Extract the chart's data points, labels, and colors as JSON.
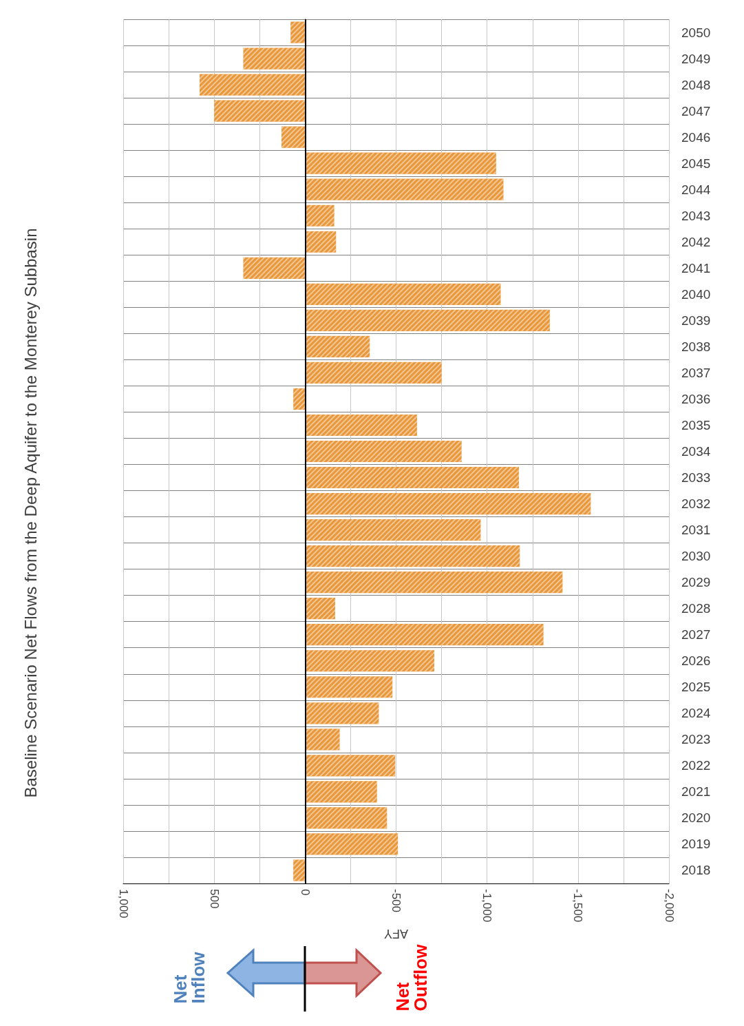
{
  "chart_data": {
    "type": "bar",
    "orientation": "horizontal",
    "title": "Baseline Scenario Net Flows from the Deep Aquifer to the Monterey Subbasin",
    "xlabel": "AFY",
    "categories": [
      "2050",
      "2049",
      "2048",
      "2047",
      "2046",
      "2045",
      "2044",
      "2043",
      "2042",
      "2041",
      "2040",
      "2039",
      "2038",
      "2037",
      "2036",
      "2035",
      "2034",
      "2033",
      "2032",
      "2031",
      "2030",
      "2029",
      "2028",
      "2027",
      "2026",
      "2025",
      "2024",
      "2023",
      "2022",
      "2021",
      "2020",
      "2019",
      "2018"
    ],
    "values": [
      80,
      340,
      580,
      500,
      130,
      -1050,
      -1090,
      -160,
      -170,
      340,
      -1075,
      -1345,
      -355,
      -750,
      65,
      -615,
      -860,
      -1175,
      -1570,
      -965,
      -1180,
      -1415,
      -165,
      -1310,
      -710,
      -480,
      -405,
      -190,
      -495,
      -395,
      -450,
      -510,
      65
    ],
    "color": "#e8973a",
    "xlim": [
      1000,
      -2000
    ],
    "xticks": [
      {
        "value": 1000,
        "label": "1,000"
      },
      {
        "value": 750,
        "label": null
      },
      500,
      {
        "value": 250,
        "label": null
      },
      0,
      {
        "value": -250,
        "label": null
      },
      -500,
      {
        "value": -750,
        "label": null
      },
      {
        "value": -1000,
        "label": "-1,000"
      },
      {
        "value": -1250,
        "label": null
      },
      {
        "value": -1500,
        "label": "-1,500"
      },
      {
        "value": -1750,
        "label": null
      },
      {
        "value": -2000,
        "label": "-2,000"
      }
    ],
    "grid": true,
    "ref_lines": [
      {
        "axis": "x",
        "value": 0,
        "label": null,
        "color": "#000000"
      }
    ],
    "annotations": [
      "Net Inflow",
      "Net Outflow"
    ]
  }
}
